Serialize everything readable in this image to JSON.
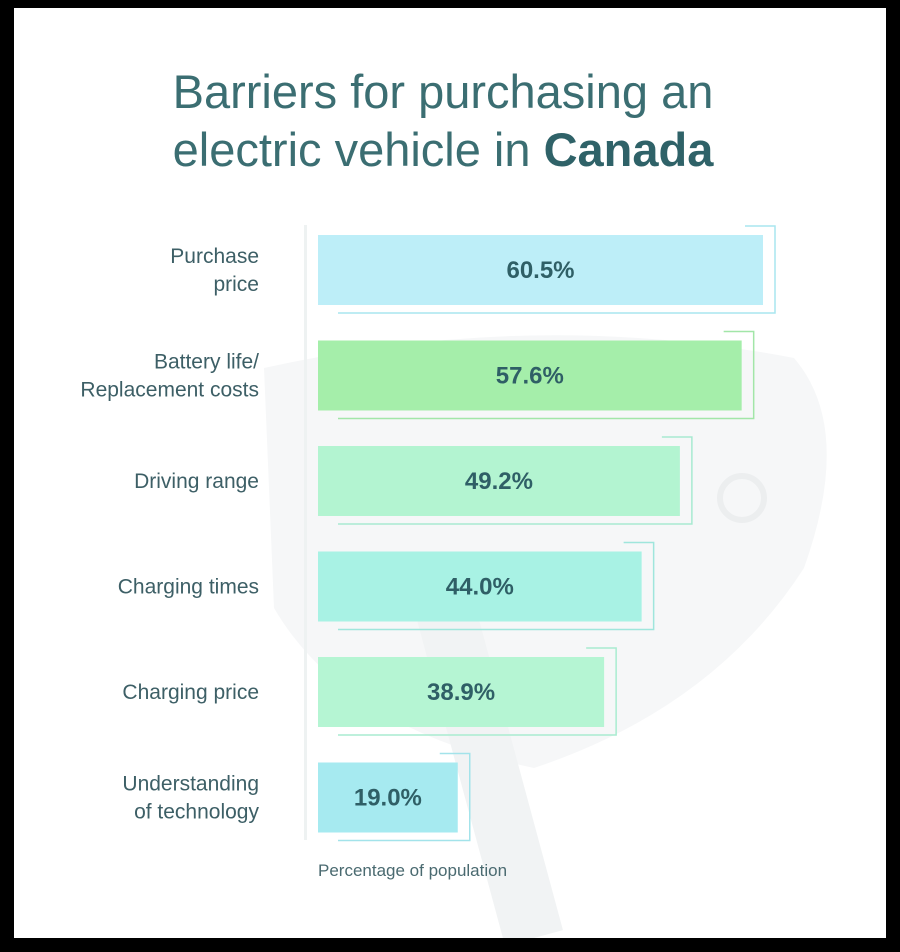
{
  "title": {
    "line1": "Barriers for purchasing an",
    "line2_prefix": "electric vehicle in ",
    "line2_bold": "Canada"
  },
  "chart_data": {
    "type": "bar",
    "orientation": "horizontal",
    "categories": [
      [
        "Purchase",
        "price"
      ],
      [
        "Battery life/",
        "Replacement costs"
      ],
      [
        "Driving range"
      ],
      [
        "Charging times"
      ],
      [
        "Charging price"
      ],
      [
        "Understanding",
        "of technology"
      ]
    ],
    "values": [
      60.5,
      57.6,
      49.2,
      44.0,
      38.9,
      19.0
    ],
    "value_labels": [
      "60.5%",
      "57.6%",
      "49.2%",
      "44.0%",
      "38.9%",
      "19.0%"
    ],
    "colors": [
      "#bdeef8",
      "#a5eeaa",
      "#b3f4d1",
      "#a8f2e4",
      "#b5f5d3",
      "#a6eaf0"
    ],
    "accent_colors": [
      "#a9e6ef",
      "#a2e6a8",
      "#a8ead1",
      "#9fe6dc",
      "#a9ecd0",
      "#a3e3ea"
    ],
    "xlabel": "Percentage of population",
    "xlim": [
      0,
      60.5
    ],
    "grid": false,
    "legend": "none"
  }
}
